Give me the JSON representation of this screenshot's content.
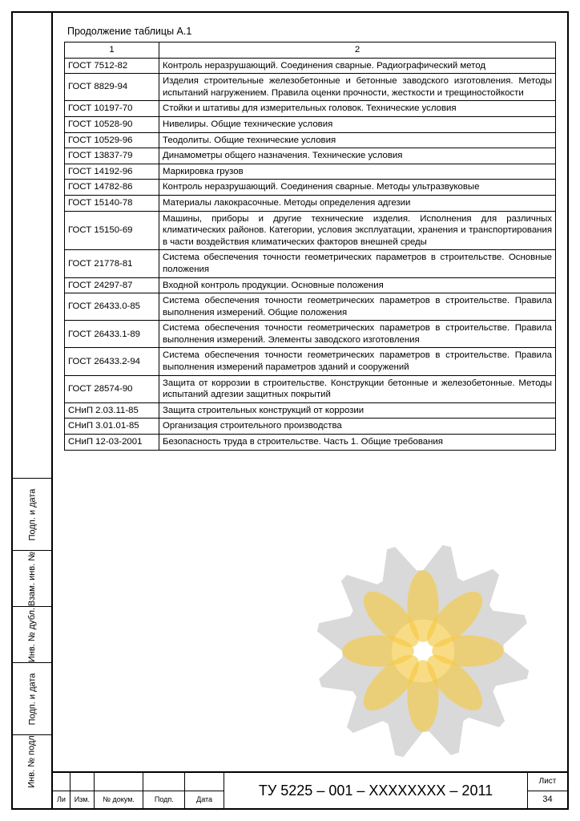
{
  "caption": "Продолжение таблицы А.1",
  "headers": {
    "col1": "1",
    "col2": "2"
  },
  "rows": [
    {
      "code": "ГОСТ 7512-82",
      "desc": "Контроль неразрушающий. Соединения сварные. Радиографический метод",
      "align": "justified"
    },
    {
      "code": "ГОСТ 8829-94",
      "desc": "Изделия строительные железобетонные и бетонные заводского изготовления. Методы испытаний нагружением. Правила оценки прочности, жесткости и трещиностойкости",
      "align": "justified"
    },
    {
      "code": "ГОСТ 10197-70",
      "desc": "Стойки и штативы для измерительных головок. Технические условия",
      "align": "left"
    },
    {
      "code": "ГОСТ 10528-90",
      "desc": "Нивелиры. Общие технические условия",
      "align": "left"
    },
    {
      "code": "ГОСТ 10529-96",
      "desc": "Теодолиты. Общие технические условия",
      "align": "left"
    },
    {
      "code": "ГОСТ 13837-79",
      "desc": "Динамометры общего назначения. Технические условия",
      "align": "left"
    },
    {
      "code": "ГОСТ 14192-96",
      "desc": "Маркировка грузов",
      "align": "left"
    },
    {
      "code": "ГОСТ 14782-86",
      "desc": "Контроль неразрушающий. Соединения сварные. Методы ультразвуковые",
      "align": "justified"
    },
    {
      "code": "ГОСТ 15140-78",
      "desc": "Материалы лакокрасочные. Методы определения адгезии",
      "align": "left"
    },
    {
      "code": "ГОСТ 15150-69",
      "desc": "Машины, приборы и другие технические изделия. Исполнения для различных климатических районов. Категории, условия эксплуатации, хранения и транспортирования в части воздействия климатических факторов внешней среды",
      "align": "justified"
    },
    {
      "code": "ГОСТ 21778-81",
      "desc": "Система обеспечения точности геометрических параметров в строительстве. Основные положения",
      "align": "justified"
    },
    {
      "code": "ГОСТ 24297-87",
      "desc": "Входной контроль продукции. Основные положения",
      "align": "left"
    },
    {
      "code": "ГОСТ 26433.0-85",
      "desc": "Система обеспечения точности геометрических параметров в строительстве. Правила выполнения измерений. Общие положения",
      "align": "justified"
    },
    {
      "code": "ГОСТ 26433.1-89",
      "desc": "Система обеспечения точности геометрических параметров в строительстве. Правила выполнения измерений. Элементы заводского изготовления",
      "align": "justified"
    },
    {
      "code": "ГОСТ 26433.2-94",
      "desc": "Система обеспечения точности геометрических параметров в строительстве. Правила выполнения измерений параметров зданий и сооружений",
      "align": "justified"
    },
    {
      "code": "ГОСТ 28574-90",
      "desc": "Защита от коррозии в строительстве. Конструкции бетонные и железобетонные. Методы испытаний адгезии защитных покрытий",
      "align": "justified"
    },
    {
      "code": "СНиП 2.03.11-85",
      "desc": "Защита строительных конструкций от коррозии",
      "align": "left"
    },
    {
      "code": "СНиП 3.01.01-85",
      "desc": "Организация строительного производства",
      "align": "left"
    },
    {
      "code": "СНиП 12-03-2001",
      "desc": "Безопасность труда в строительстве. Часть 1. Общие требования",
      "align": "left"
    }
  ],
  "side_labels": {
    "l1": "Подп. и дата",
    "l2": "Взам. инв. №",
    "l3": "Инв. № дубл.",
    "l4": "Подп. и дата",
    "l5": "Инв. № подл"
  },
  "title_block": {
    "cols": {
      "li": "Ли",
      "izm": "Изм.",
      "doc": "№ докум.",
      "podp": "Подп.",
      "data": "Дата"
    },
    "doc_number": "ТУ 5225 – 001 – ХХХХХХХХ – 2011",
    "sheet_label": "Лист",
    "sheet_no": "34"
  },
  "watermark": {
    "gear_fill": "#b3b3b3",
    "gear_opacity": 0.55,
    "petal_fill": "#f4c430",
    "petal_opacity": 0.65
  }
}
